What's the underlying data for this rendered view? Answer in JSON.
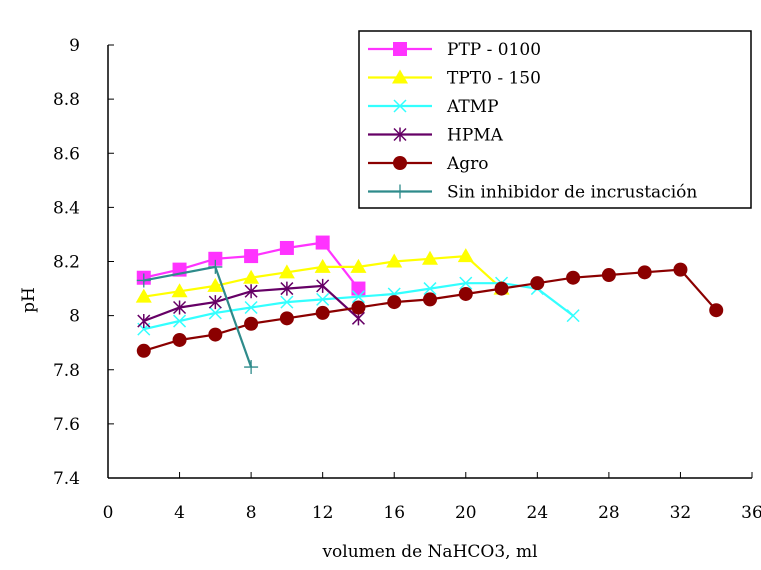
{
  "chart_data": {
    "type": "line",
    "title": "",
    "xlabel": "volumen de NaHCO3, ml",
    "ylabel": "pH",
    "xlim": [
      0,
      36
    ],
    "ylim": [
      7.4,
      9
    ],
    "xticks": [
      0,
      4,
      8,
      12,
      16,
      20,
      24,
      28,
      32,
      36
    ],
    "yticks": [
      7.4,
      7.6,
      7.8,
      8,
      8.2,
      8.4,
      8.6,
      8.8,
      9
    ],
    "ytick_labels": [
      "7.4",
      "7.6",
      "7.8",
      "8",
      "8.2",
      "8.4",
      "8.6",
      "8.8",
      "9"
    ],
    "grid": false,
    "legend_position": "top-right",
    "series": [
      {
        "name": "PTP - 0100",
        "color": "#ff33ff",
        "marker": "square",
        "x": [
          2,
          4,
          6,
          8,
          10,
          12,
          14
        ],
        "y": [
          8.14,
          8.17,
          8.21,
          8.22,
          8.25,
          8.27,
          8.1
        ]
      },
      {
        "name": "TPT0 - 150",
        "color": "#ffff00",
        "marker": "triangle",
        "x": [
          2,
          4,
          6,
          8,
          10,
          12,
          14,
          16,
          18,
          20,
          22
        ],
        "y": [
          8.07,
          8.09,
          8.11,
          8.14,
          8.16,
          8.18,
          8.18,
          8.2,
          8.21,
          8.22,
          8.1
        ]
      },
      {
        "name": "ATMP",
        "color": "#33ffff",
        "marker": "x",
        "x": [
          2,
          4,
          6,
          8,
          10,
          12,
          14,
          16,
          18,
          20,
          22,
          24,
          26
        ],
        "y": [
          7.95,
          7.98,
          8.01,
          8.03,
          8.05,
          8.06,
          8.07,
          8.08,
          8.1,
          8.12,
          8.12,
          8.1,
          8.0
        ]
      },
      {
        "name": "HPMA",
        "color": "#660066",
        "marker": "asterisk",
        "x": [
          2,
          4,
          6,
          8,
          10,
          12,
          14
        ],
        "y": [
          7.98,
          8.03,
          8.05,
          8.09,
          8.1,
          8.11,
          7.99
        ]
      },
      {
        "name": "Agro",
        "color": "#8b0000",
        "marker": "circle",
        "x": [
          2,
          4,
          6,
          8,
          10,
          12,
          14,
          16,
          18,
          20,
          22,
          24,
          26,
          28,
          30,
          32,
          34
        ],
        "y": [
          7.87,
          7.91,
          7.93,
          7.97,
          7.99,
          8.01,
          8.03,
          8.05,
          8.06,
          8.08,
          8.1,
          8.12,
          8.14,
          8.15,
          8.16,
          8.17,
          8.02
        ]
      },
      {
        "name": "Sin inhibidor de incrustación",
        "color": "#2e8b8b",
        "marker": "plus",
        "x": [
          2,
          6,
          8
        ],
        "y": [
          8.13,
          8.18,
          7.81
        ]
      }
    ]
  }
}
